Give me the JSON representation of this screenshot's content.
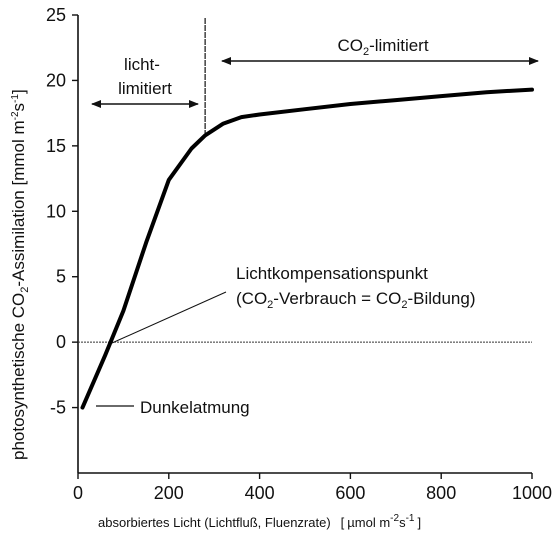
{
  "chart_data": {
    "type": "line",
    "x_ticks": [
      0,
      200,
      400,
      600,
      800,
      1000
    ],
    "y_ticks": [
      -5,
      0,
      5,
      10,
      15,
      20,
      25
    ],
    "xlim": [
      0,
      1000
    ],
    "ylim": [
      -10,
      25
    ],
    "grid": false,
    "x_label": "absorbiertes Licht (Lichtfluß, Fluenzrate)",
    "x_unit_prefix": "[",
    "x_unit_mu": "µmol m",
    "x_unit_exp1": "-2",
    "x_unit_s": "s",
    "x_unit_exp2": "-1",
    "x_unit_suffix": "]",
    "y_label_main": "photosynthetische CO",
    "y_label_sub": "2",
    "y_label_rest": "-Assimilation [mmol m",
    "y_label_exp1": "-2",
    "y_label_s": "s",
    "y_label_exp2": "-1",
    "y_label_suffix": "]",
    "series": [
      {
        "x": [
          10,
          30,
          60,
          100,
          150,
          200,
          250,
          280,
          320,
          360,
          400,
          500,
          600,
          700,
          800,
          900,
          1000
        ],
        "y": [
          -5,
          -3.4,
          -1.0,
          2.4,
          7.6,
          12.4,
          14.8,
          15.8,
          16.7,
          17.2,
          17.4,
          17.8,
          18.2,
          18.5,
          18.8,
          19.1,
          19.3
        ]
      }
    ],
    "zero_line": 0,
    "divider_x": 280,
    "annotations": {
      "light_limited_line1": "licht-",
      "light_limited_line2": "limitiert",
      "co2_limited_prefix": "CO",
      "co2_limited_sub": "2",
      "co2_limited_rest": "-limitiert",
      "compensation_title": "Lichtkompensationspunkt",
      "compensation_open": "(CO",
      "compensation_sub1": "2",
      "compensation_mid": "-Verbrauch = CO",
      "compensation_sub2": "2",
      "compensation_close": "-Bildung)",
      "dark_respiration": "Dunkelatmung"
    }
  }
}
